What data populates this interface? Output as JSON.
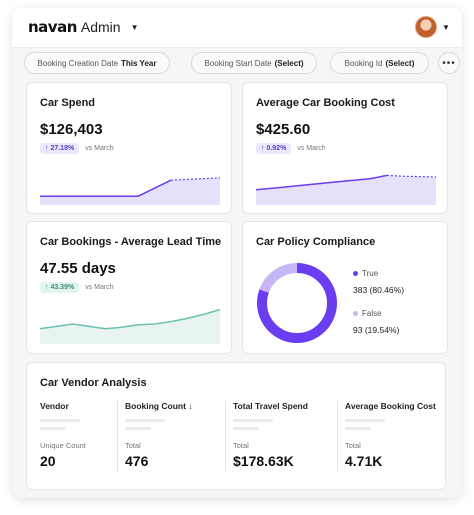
{
  "header": {
    "brand": "navan",
    "suffix": "Admin",
    "caret_icon": "chevron-down-icon",
    "avatar_icon": "user-avatar"
  },
  "filters": [
    {
      "label": "Booking Creation Date",
      "value": "This Year"
    },
    {
      "label": "Booking Start Date",
      "value": "(Select)"
    },
    {
      "label": "Booking Id",
      "value": "(Select)"
    }
  ],
  "more_label": "•••",
  "colors": {
    "accent": "#6b3df0",
    "accent_light": "#c8b6f7",
    "fill_purple": "#e5e1fb",
    "teal": "#6fbfb0",
    "fill_teal": "#e7f4f1"
  },
  "cards": {
    "car_spend": {
      "title": "Car Spend",
      "value": "$126,403",
      "delta": "↑ 27.18%",
      "delta_note": "vs March",
      "trend": [
        0.22,
        0.22,
        0.22,
        0.22,
        0.22,
        0.22,
        0.22,
        0.42,
        0.62,
        0.64,
        0.66,
        0.68
      ]
    },
    "avg_booking_cost": {
      "title": "Average Car Booking Cost",
      "value": "$425.60",
      "delta": "↑ 0.92%",
      "delta_note": "vs March",
      "trend": [
        0.38,
        0.42,
        0.46,
        0.5,
        0.54,
        0.58,
        0.62,
        0.66,
        0.74,
        0.72,
        0.71,
        0.7
      ]
    },
    "lead_time": {
      "title": "Car Bookings - Average Lead Time",
      "value": "47.55 days",
      "delta": "↑ 43.39%",
      "delta_note": "vs March",
      "trend": [
        0.38,
        0.44,
        0.5,
        0.44,
        0.38,
        0.42,
        0.48,
        0.5,
        0.56,
        0.64,
        0.74,
        0.86
      ]
    },
    "policy": {
      "title": "Car Policy Compliance",
      "true_label": "True",
      "true_value": "383 (80.46%)",
      "true_fraction": 0.8046,
      "false_label": "False",
      "false_value": "93 (19.54%)",
      "false_fraction": 0.1954
    }
  },
  "vendor": {
    "title": "Car Vendor Analysis",
    "columns": [
      {
        "header": "Vendor",
        "sub": "Unique Count",
        "value": "20"
      },
      {
        "header": "Booking Count ↓",
        "sub": "Total",
        "value": "476"
      },
      {
        "header": "Total Travel Spend",
        "sub": "Total",
        "value": "$178.63K"
      },
      {
        "header": "Average Booking Cost",
        "sub": "Total",
        "value": "4.71K"
      }
    ]
  }
}
